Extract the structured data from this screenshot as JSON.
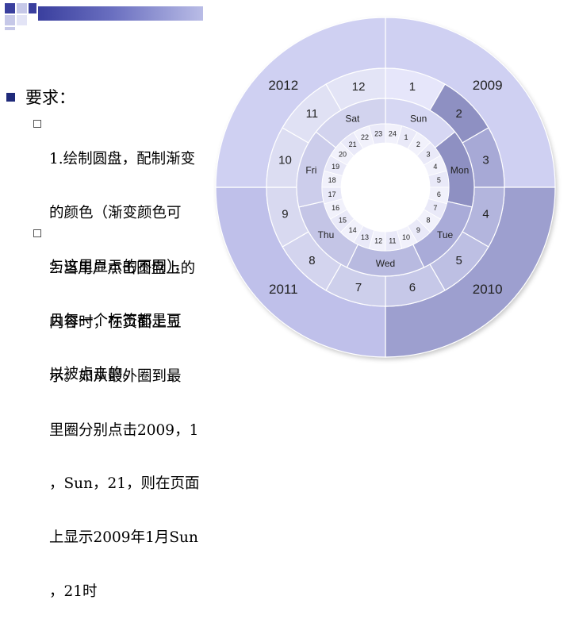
{
  "requirements": {
    "title": "要求：",
    "items": [
      {
        "lines": [
          "1.绘制圆盘，配制渐变",
          "的颜色（渐变颜色可",
          "与这里显示的不同），",
          "且每一个标签都是可",
          "以被点击的。"
        ]
      },
      {
        "lines": [
          "2.当用户点击圆盘上的",
          "内容时，在页面上显",
          "示。如从最外圈到最",
          "里圈分别点击2009，1",
          "，Sun，21，则在页面",
          "上显示2009年1月Sun",
          "，21时"
        ]
      }
    ]
  },
  "chart_data": {
    "type": "sunburst",
    "rings": [
      {
        "name": "",
        "labels": [
          "2009",
          "2010",
          "2011",
          "2012"
        ],
        "colors": [
          "#cfd0f2",
          "#9d9fcf",
          "#bfc0ea",
          "#cfd0f2"
        ]
      },
      {
        "name": "",
        "labels": [
          "1",
          "2",
          "3",
          "4",
          "5",
          "6",
          "7",
          "8",
          "9",
          "10",
          "11",
          "12"
        ],
        "colors": [
          "#e6e6fa",
          "#8e90c2",
          "#a7a9d6",
          "#b3b5dd",
          "#bdbfe3",
          "#c6c8e8",
          "#cdcfeb",
          "#d3d4ee",
          "#d8d9f0",
          "#dcddf2",
          "#e0e1f4",
          "#e3e4f6"
        ]
      },
      {
        "name": "",
        "labels": [
          "Sun",
          "Mon",
          "Tue",
          "Wed",
          "Thu",
          "Fri",
          "Sat"
        ],
        "colors": [
          "#d6d7f3",
          "#8e90c2",
          "#a9abd8",
          "#b8bae0",
          "#c4c5e6",
          "#cccdeb",
          "#d2d3ee"
        ]
      },
      {
        "name": "",
        "labels": [
          "24",
          "1",
          "2",
          "3",
          "4",
          "5",
          "6",
          "7",
          "8",
          "9",
          "10",
          "11",
          "12",
          "13",
          "14",
          "15",
          "16",
          "17",
          "18",
          "19",
          "20",
          "21",
          "22",
          "23"
        ],
        "colors": [
          "#f1f1fb",
          "#e9e9f8"
        ]
      }
    ]
  }
}
